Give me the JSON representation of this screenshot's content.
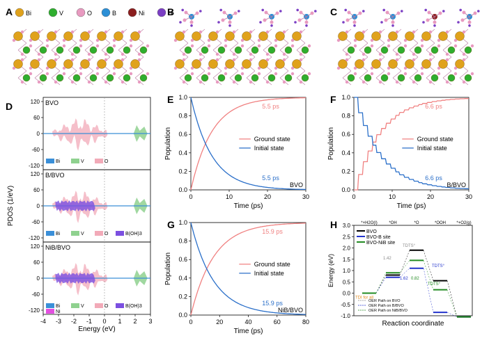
{
  "panel_letters": {
    "A": "A",
    "B": "B",
    "C": "C",
    "D": "D",
    "E": "E",
    "F": "F",
    "G": "G",
    "H": "H"
  },
  "legend_atoms": [
    {
      "label": "Bi",
      "color": "#e0a21c"
    },
    {
      "label": "V",
      "color": "#2fae2f"
    },
    {
      "label": "O",
      "color": "#e89ac0"
    },
    {
      "label": "B",
      "color": "#2c8fd6"
    },
    {
      "label": "Ni",
      "color": "#8b1e1e"
    },
    {
      "label": "H",
      "color": "#7b3fc4"
    }
  ],
  "pdos": {
    "ylabel": "PDOS (1/eV)",
    "xlabel": "Energy (eV)",
    "xticks": [
      "-4",
      "-3",
      "-2",
      "-1",
      "0",
      "1",
      "2",
      "3"
    ],
    "yticks": [
      "120",
      "60",
      "0",
      "-60",
      "-120"
    ],
    "panels": [
      {
        "title": "BVO",
        "legend": [
          "Bi",
          "V",
          "O"
        ]
      },
      {
        "title": "B/BVO",
        "legend": [
          "Bi",
          "V",
          "O",
          "B(OH)3"
        ]
      },
      {
        "title": "NiB/BVO",
        "legend": [
          "Bi",
          "V",
          "O",
          "B(OH)3",
          "Ni"
        ]
      }
    ],
    "colors": {
      "Bi": "#3a8fd8",
      "V": "#8fd18f",
      "O": "#f2aab8",
      "B(OH)3": "#7b4fe0",
      "Ni": "#e34fe0"
    }
  },
  "chart_data": [
    {
      "type": "line",
      "title": "BVO",
      "xlabel": "Time (ps)",
      "ylabel": "Population",
      "xlim": [
        0,
        30
      ],
      "ylim": [
        0,
        1.0
      ],
      "xticks": [
        "0",
        "10",
        "20",
        "30"
      ],
      "yticks": [
        "0.0",
        "0.2",
        "0.4",
        "0.6",
        "0.8",
        "1.0"
      ],
      "series": [
        {
          "name": "Ground state",
          "color": "#f08080",
          "tau": 5.5,
          "kind": "rise"
        },
        {
          "name": "Initial state",
          "color": "#2a6fc9",
          "tau": 5.5,
          "kind": "decay"
        }
      ],
      "annotations": [
        "5.5 ps",
        "5.5 ps"
      ]
    },
    {
      "type": "line",
      "title": "B/BVO",
      "xlabel": "Time (ps)",
      "ylabel": "Population",
      "xlim": [
        0,
        30
      ],
      "ylim": [
        0,
        1.0
      ],
      "xticks": [
        "0",
        "10",
        "20",
        "30"
      ],
      "yticks": [
        "0.0",
        "0.2",
        "0.4",
        "0.6",
        "0.8",
        "1.0"
      ],
      "series": [
        {
          "name": "Ground state",
          "color": "#f08080",
          "tau": 6.6,
          "kind": "rise",
          "step": true
        },
        {
          "name": "Initial state",
          "color": "#2a6fc9",
          "tau": 6.6,
          "kind": "decay",
          "step": true
        }
      ],
      "annotations": [
        "6.6 ps",
        "6.6 ps"
      ]
    },
    {
      "type": "line",
      "title": "NiB/BVO",
      "xlabel": "Time (ps)",
      "ylabel": "Population",
      "xlim": [
        0,
        80
      ],
      "ylim": [
        0,
        1.0
      ],
      "xticks": [
        "0",
        "20",
        "40",
        "60",
        "80"
      ],
      "yticks": [
        "0.0",
        "0.2",
        "0.4",
        "0.6",
        "0.8",
        "1.0"
      ],
      "series": [
        {
          "name": "Ground state",
          "color": "#f08080",
          "tau": 15.9,
          "kind": "rise"
        },
        {
          "name": "Initial state",
          "color": "#2a6fc9",
          "tau": 15.9,
          "kind": "decay"
        }
      ],
      "annotations": [
        "15.9 ps",
        "15.9 ps"
      ]
    },
    {
      "type": "line",
      "xlabel": "Reaction coordinate",
      "ylabel": "Energy (eV)",
      "ylim": [
        -1.0,
        3.0
      ],
      "yticks": [
        "3.0",
        "2.5",
        "2.0",
        "1.5",
        "1.0",
        "0.5",
        "0.0",
        "-0.5",
        "-1.0"
      ],
      "categories": [
        "*+H2O(l)",
        "*OH",
        "*O",
        "*OOH",
        "*+O2(g)"
      ],
      "series": [
        {
          "name": "BVO",
          "color": "#000000",
          "values": [
            0.0,
            0.8,
            1.9,
            0.55,
            -1.05
          ]
        },
        {
          "name": "BVO-B site",
          "color": "#2233cc",
          "values": [
            0.0,
            0.7,
            1.1,
            -0.85,
            -1.05
          ]
        },
        {
          "name": "BVO-NiB site",
          "color": "#228b22",
          "values": [
            0.0,
            0.9,
            1.45,
            0.15,
            -1.05
          ]
        }
      ],
      "annotations": [
        "1.42",
        "1.62",
        "0.82",
        "TDTS°",
        "TDTS°",
        "TDTS°",
        "TDI for all"
      ],
      "path_legend": [
        "OER Path on BVO",
        "OER Path on B/BVO",
        "OER Path on NiB/BVO"
      ]
    }
  ]
}
